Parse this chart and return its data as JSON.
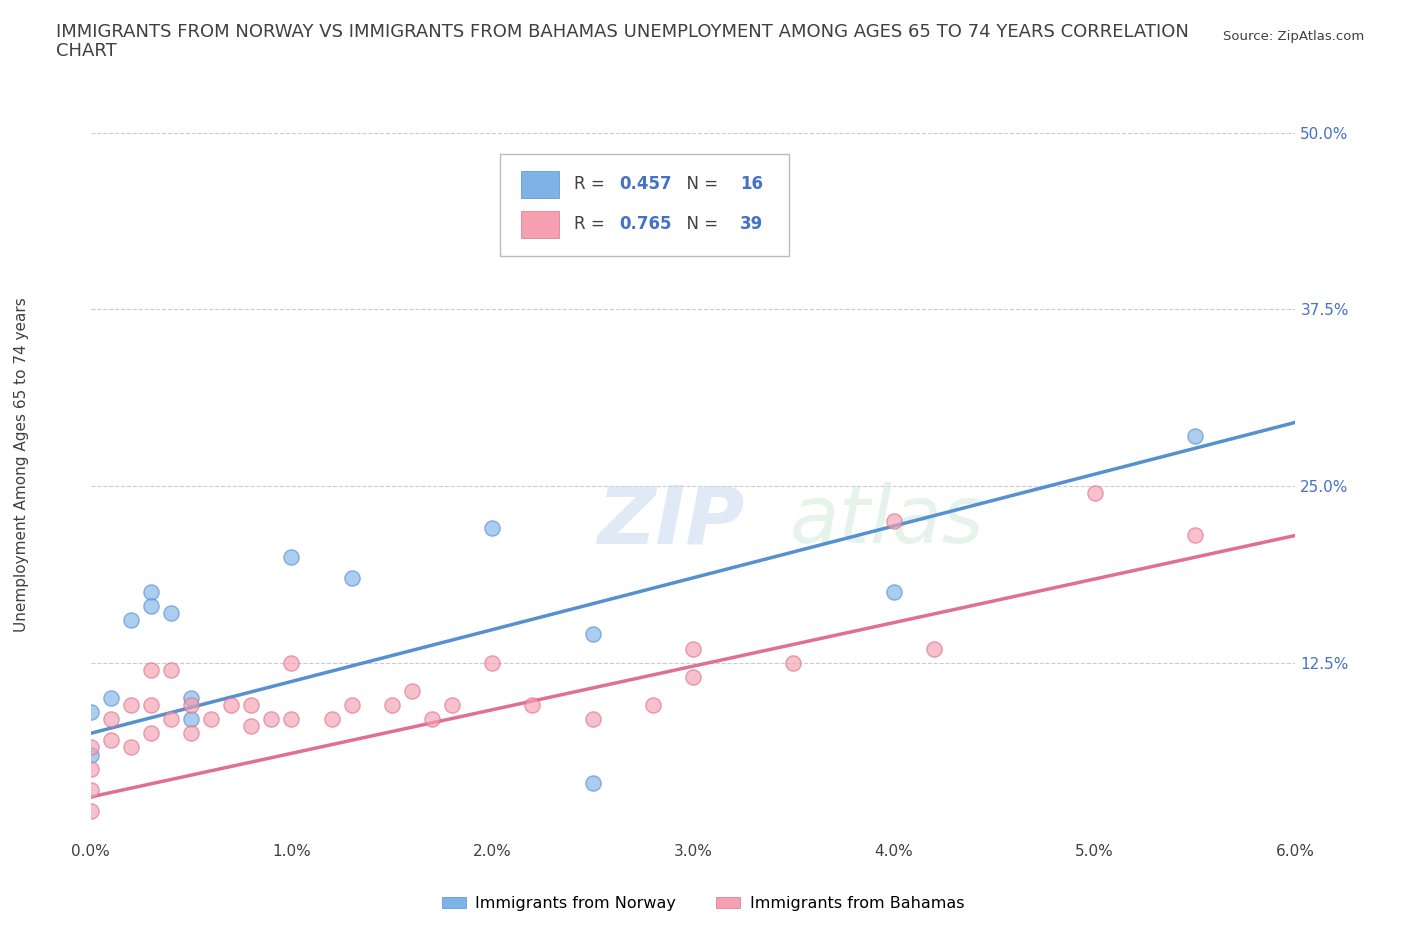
{
  "title_line1": "IMMIGRANTS FROM NORWAY VS IMMIGRANTS FROM BAHAMAS UNEMPLOYMENT AMONG AGES 65 TO 74 YEARS CORRELATION",
  "title_line2": "CHART",
  "source": "Source: ZipAtlas.com",
  "ylabel": "Unemployment Among Ages 65 to 74 years",
  "xlim": [
    0.0,
    0.06
  ],
  "ylim": [
    0.0,
    0.5
  ],
  "xticks": [
    0.0,
    0.01,
    0.02,
    0.03,
    0.04,
    0.05,
    0.06
  ],
  "yticks": [
    0.0,
    0.125,
    0.25,
    0.375,
    0.5
  ],
  "xticklabels": [
    "0.0%",
    "1.0%",
    "2.0%",
    "3.0%",
    "4.0%",
    "5.0%",
    "6.0%"
  ],
  "yticklabels": [
    "",
    "12.5%",
    "25.0%",
    "37.5%",
    "50.0%"
  ],
  "norway_color": "#7fb3e8",
  "norway_edge_color": "#5590d0",
  "bahamas_color": "#f4a0b0",
  "bahamas_edge_color": "#e07090",
  "norway_R": 0.457,
  "norway_N": 16,
  "bahamas_R": 0.765,
  "bahamas_N": 39,
  "norway_scatter_x": [
    0.0,
    0.0,
    0.001,
    0.002,
    0.003,
    0.003,
    0.004,
    0.005,
    0.005,
    0.01,
    0.013,
    0.02,
    0.025,
    0.04,
    0.025,
    0.055
  ],
  "norway_scatter_y": [
    0.06,
    0.09,
    0.1,
    0.155,
    0.175,
    0.165,
    0.16,
    0.085,
    0.1,
    0.2,
    0.185,
    0.22,
    0.04,
    0.175,
    0.145,
    0.285
  ],
  "bahamas_scatter_x": [
    0.0,
    0.0,
    0.0,
    0.0,
    0.001,
    0.001,
    0.002,
    0.002,
    0.003,
    0.003,
    0.003,
    0.004,
    0.004,
    0.005,
    0.005,
    0.006,
    0.007,
    0.008,
    0.008,
    0.009,
    0.01,
    0.01,
    0.012,
    0.013,
    0.015,
    0.016,
    0.017,
    0.018,
    0.02,
    0.022,
    0.025,
    0.028,
    0.03,
    0.03,
    0.035,
    0.04,
    0.042,
    0.05,
    0.055
  ],
  "bahamas_scatter_y": [
    0.02,
    0.035,
    0.05,
    0.065,
    0.07,
    0.085,
    0.065,
    0.095,
    0.075,
    0.095,
    0.12,
    0.085,
    0.12,
    0.075,
    0.095,
    0.085,
    0.095,
    0.08,
    0.095,
    0.085,
    0.085,
    0.125,
    0.085,
    0.095,
    0.095,
    0.105,
    0.085,
    0.095,
    0.125,
    0.095,
    0.085,
    0.095,
    0.115,
    0.135,
    0.125,
    0.225,
    0.135,
    0.245,
    0.215
  ],
  "norway_line_x": [
    0.0,
    0.06
  ],
  "norway_line_y": [
    0.075,
    0.295
  ],
  "bahamas_line_x": [
    0.0,
    0.06
  ],
  "bahamas_line_y": [
    0.03,
    0.215
  ],
  "watermark_zip": "ZIP",
  "watermark_atlas": "atlas",
  "legend_norway_label": "Immigrants from Norway",
  "legend_bahamas_label": "Immigrants from Bahamas",
  "background_color": "#ffffff",
  "grid_color": "#cccccc",
  "text_color_blue": "#4472c4",
  "text_color_dark": "#404040",
  "title_fontsize": 13,
  "tick_fontsize": 11
}
